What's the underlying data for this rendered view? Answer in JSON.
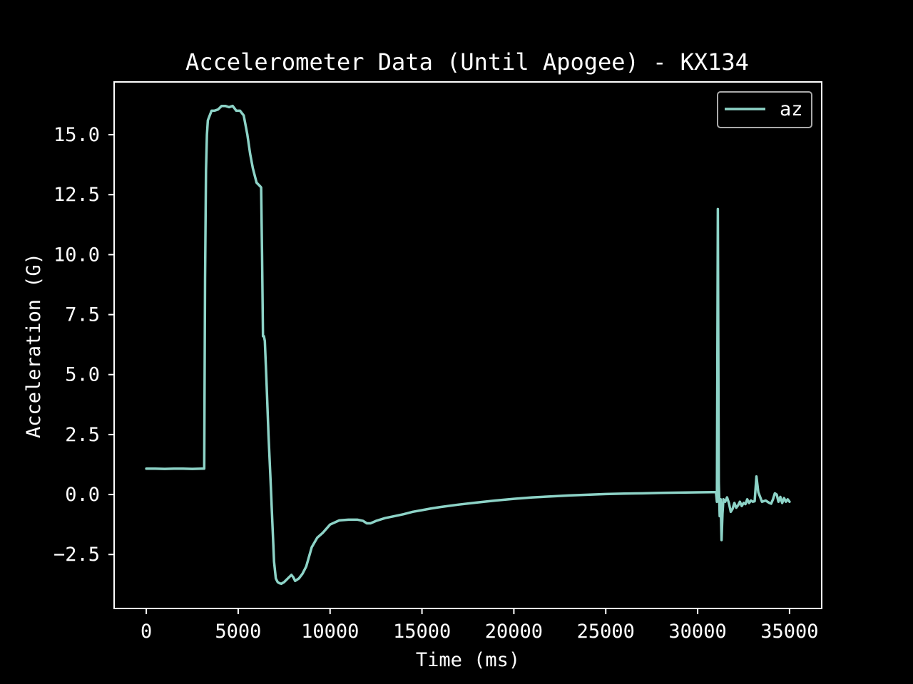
{
  "chart_data": {
    "type": "line",
    "title": "Accelerometer Data (Until Apogee) - KX134",
    "xlabel": "Time (ms)",
    "ylabel": "Acceleration (G)",
    "xlim": [
      -1750,
      36750
    ],
    "ylim": [
      -4.75,
      17.2
    ],
    "xticks": [
      0,
      5000,
      10000,
      15000,
      20000,
      25000,
      30000,
      35000
    ],
    "xtick_labels": [
      "0",
      "5000",
      "10000",
      "15000",
      "20000",
      "25000",
      "30000",
      "35000"
    ],
    "yticks": [
      -2.5,
      0.0,
      2.5,
      5.0,
      7.5,
      10.0,
      12.5,
      15.0
    ],
    "ytick_labels": [
      "−2.5",
      "0.0",
      "2.5",
      "5.0",
      "7.5",
      "10.0",
      "12.5",
      "15.0"
    ],
    "grid": false,
    "legend": {
      "placement": "top-right",
      "entries": [
        "az"
      ]
    },
    "colors": {
      "background": "#000000",
      "axes": "#ffffff",
      "text": "#ffffff",
      "series": "#8dd3c7",
      "legend_border": "#aaaaaa"
    },
    "series": [
      {
        "name": "az",
        "x": [
          0,
          500,
          1000,
          1500,
          2000,
          2500,
          3000,
          3150,
          3200,
          3250,
          3300,
          3350,
          3450,
          3550,
          3700,
          3900,
          4100,
          4300,
          4500,
          4700,
          4900,
          5100,
          5300,
          5500,
          5650,
          5800,
          6000,
          6200,
          6250,
          6300,
          6350,
          6400,
          6450,
          6550,
          6650,
          6750,
          6850,
          6950,
          7050,
          7150,
          7250,
          7350,
          7500,
          7700,
          7900,
          8000,
          8100,
          8200,
          8300,
          8500,
          8700,
          9000,
          9300,
          9600,
          10000,
          10500,
          11000,
          11500,
          11800,
          12000,
          12200,
          12500,
          13000,
          13500,
          14000,
          14500,
          15000,
          15500,
          16000,
          17000,
          18000,
          19000,
          20000,
          21000,
          22000,
          23000,
          24000,
          25000,
          26000,
          27000,
          28000,
          29000,
          30000,
          30800,
          31000,
          31050,
          31100,
          31150,
          31200,
          31250,
          31300,
          31350,
          31400,
          31500,
          31600,
          31700,
          31800,
          31900,
          32000,
          32100,
          32200,
          32300,
          32400,
          32500,
          32600,
          32700,
          32800,
          32900,
          33000,
          33100,
          33200,
          33300,
          33500,
          33700,
          33900,
          34000,
          34100,
          34200,
          34300,
          34400,
          34500,
          34600,
          34700,
          34800,
          34900,
          35000
        ],
        "values": [
          1.08,
          1.08,
          1.07,
          1.08,
          1.08,
          1.07,
          1.08,
          1.08,
          9.0,
          13.5,
          15.0,
          15.6,
          15.8,
          16.0,
          16.0,
          16.05,
          16.2,
          16.2,
          16.15,
          16.2,
          16.0,
          16.0,
          15.8,
          15.0,
          14.2,
          13.6,
          13.0,
          12.85,
          12.8,
          10.0,
          6.6,
          6.6,
          6.4,
          4.5,
          2.5,
          0.8,
          -1.0,
          -2.8,
          -3.5,
          -3.65,
          -3.7,
          -3.72,
          -3.65,
          -3.5,
          -3.35,
          -3.45,
          -3.6,
          -3.55,
          -3.5,
          -3.3,
          -3.0,
          -2.2,
          -1.8,
          -1.6,
          -1.25,
          -1.08,
          -1.05,
          -1.05,
          -1.1,
          -1.2,
          -1.2,
          -1.1,
          -0.98,
          -0.9,
          -0.82,
          -0.72,
          -0.65,
          -0.58,
          -0.52,
          -0.42,
          -0.33,
          -0.25,
          -0.18,
          -0.12,
          -0.08,
          -0.04,
          -0.01,
          0.02,
          0.04,
          0.05,
          0.07,
          0.08,
          0.09,
          0.1,
          0.1,
          -0.3,
          11.9,
          0.5,
          -0.9,
          -0.2,
          -1.9,
          -0.8,
          -0.2,
          -0.3,
          -0.12,
          -0.35,
          -0.72,
          -0.6,
          -0.35,
          -0.55,
          -0.45,
          -0.3,
          -0.48,
          -0.35,
          -0.4,
          -0.2,
          -0.35,
          -0.25,
          -0.3,
          -0.28,
          0.75,
          0.1,
          -0.3,
          -0.25,
          -0.35,
          -0.38,
          -0.2,
          0.05,
          0.0,
          -0.3,
          -0.1,
          -0.35,
          -0.15,
          -0.3,
          -0.2,
          -0.3
        ]
      }
    ]
  }
}
